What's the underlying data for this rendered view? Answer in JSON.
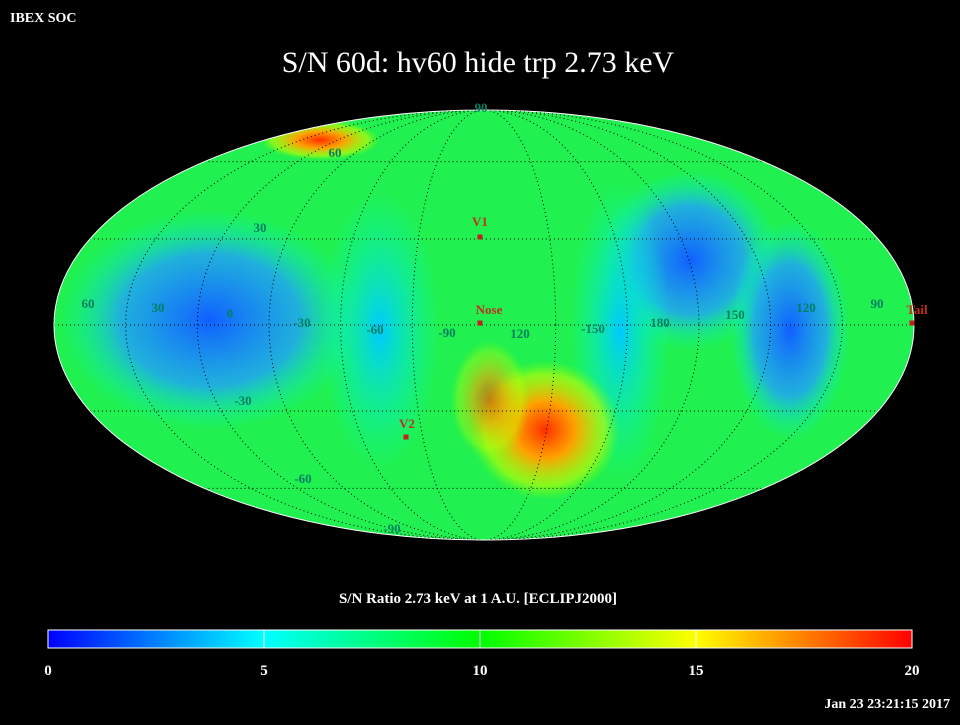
{
  "header": "IBEX SOC",
  "title": "S/N  60d: hv60 hide trp 2.73 keV",
  "map": {
    "grid_labels": [
      "90",
      "60",
      "30",
      "60",
      "30",
      "0",
      "-30",
      "-60",
      "-90",
      "120",
      "-150",
      "180",
      "150",
      "120",
      "90",
      "-30",
      "-60",
      "-90"
    ],
    "markers": [
      "V1",
      "Nose",
      "V2",
      "Tail"
    ]
  },
  "colorbar": {
    "label": "S/N Ratio 2.73 keV at 1 A.U. [ECLIPJ2000]",
    "lim": [
      0,
      20
    ],
    "ticks": [
      0,
      5,
      10,
      15,
      20
    ],
    "colors": [
      "#0000ff",
      "#00ffff",
      "#00ff00",
      "#ffff00",
      "#ff0000"
    ]
  },
  "timestamp": "Jan 23 23:21:15 2017"
}
